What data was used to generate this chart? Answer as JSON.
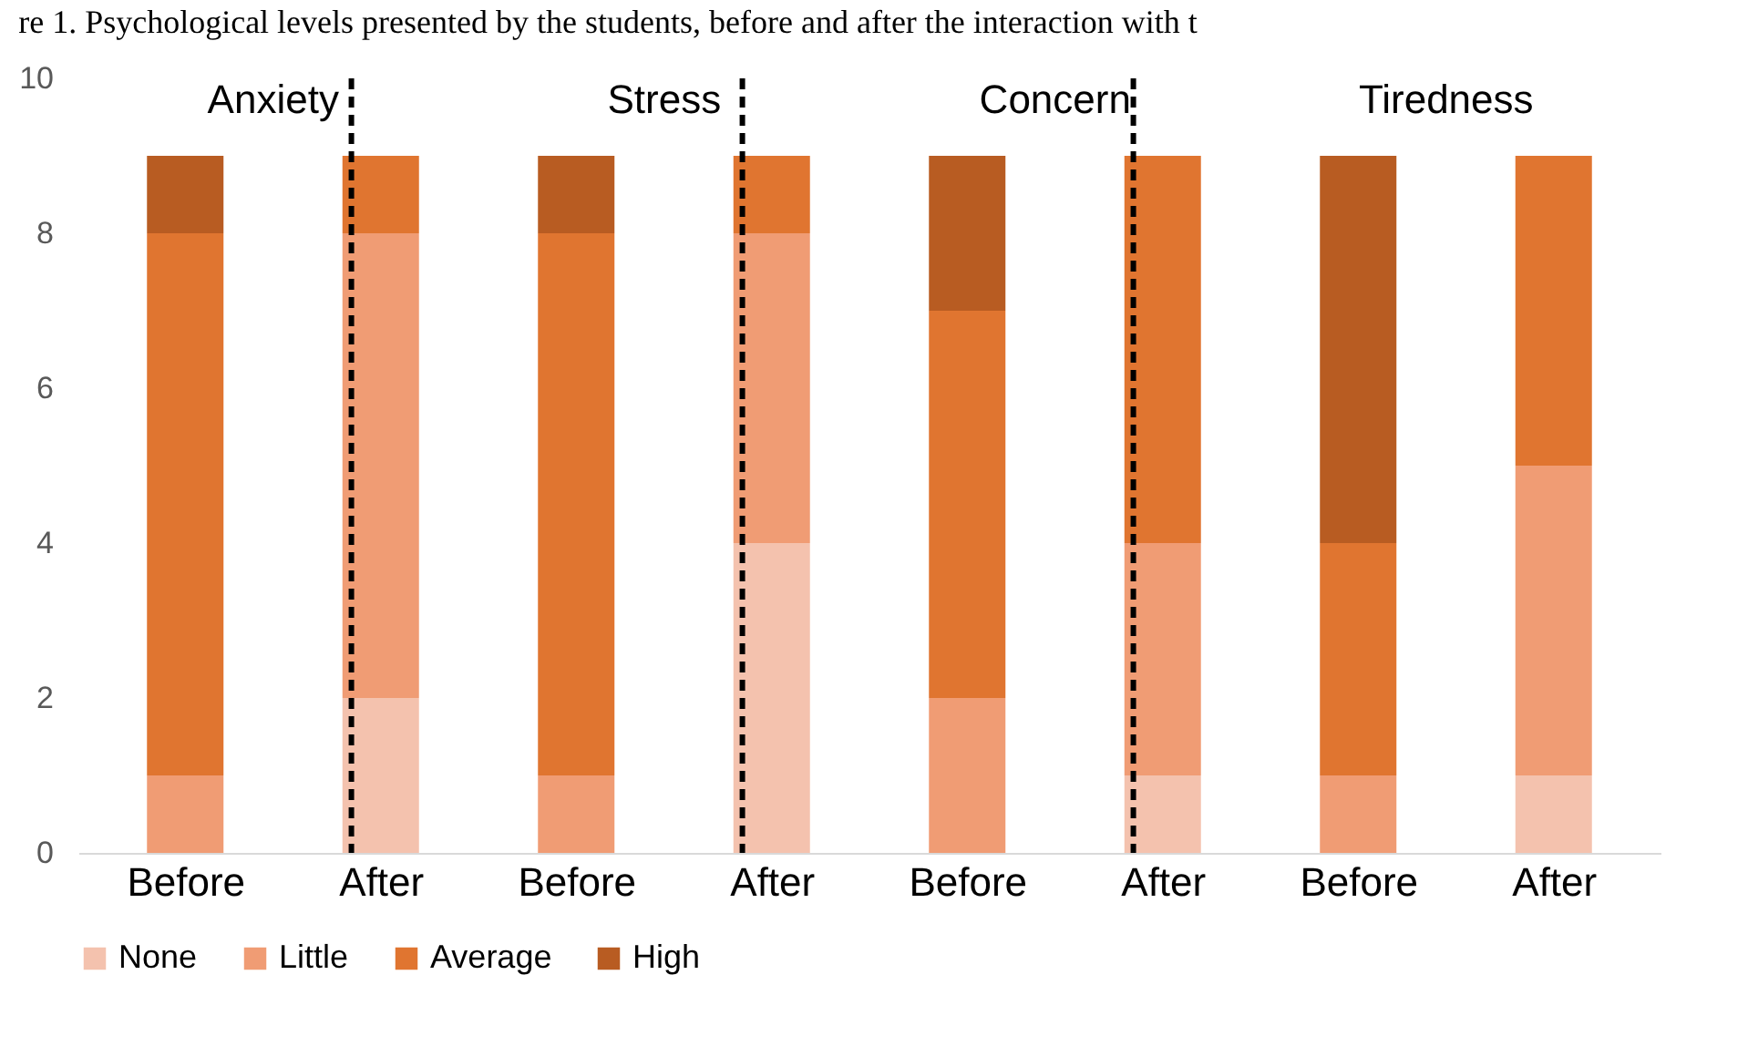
{
  "chart_data": {
    "type": "bar",
    "stacked": true,
    "title": "re 1. Psychological levels presented by the students, before and after the interaction with t",
    "categories": [
      "Before",
      "After",
      "Before",
      "After",
      "Before",
      "After",
      "Before",
      "After"
    ],
    "series": [
      {
        "name": "None",
        "color": "#f4c2ae",
        "values": [
          0,
          2,
          0,
          4,
          0,
          1,
          0,
          1
        ]
      },
      {
        "name": "Little",
        "color": "#f09c74",
        "values": [
          1,
          6,
          1,
          4,
          2,
          3,
          1,
          4
        ]
      },
      {
        "name": "Average",
        "color": "#e07530",
        "values": [
          7,
          1,
          7,
          1,
          5,
          5,
          3,
          4
        ]
      },
      {
        "name": "High",
        "color": "#b85c22",
        "values": [
          1,
          0,
          1,
          0,
          2,
          0,
          5,
          0
        ]
      }
    ],
    "ylim": [
      0,
      10
    ],
    "yticks": [
      0,
      2,
      4,
      6,
      8,
      10
    ],
    "grid": false,
    "legend": "bottom",
    "annotations": [
      "Anxiety",
      "Stress",
      "Concern",
      "Tiredness"
    ]
  }
}
